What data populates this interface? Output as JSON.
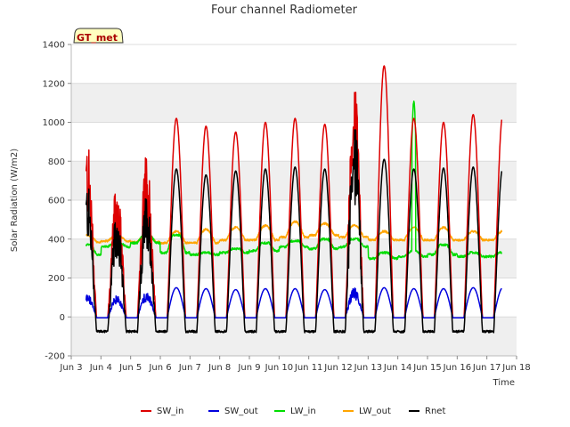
{
  "chart_data": {
    "type": "line",
    "title": "Four channel Radiometer",
    "xlabel": "Time",
    "ylabel": "Solar Radiation (W/m2)",
    "badge": "GT_met",
    "xlim": [
      3,
      18
    ],
    "ylim": [
      -200,
      1400
    ],
    "x_ticks": [
      3,
      4,
      5,
      6,
      7,
      8,
      9,
      10,
      11,
      12,
      13,
      14,
      15,
      16,
      17,
      18
    ],
    "x_tick_labels": [
      "Jun 3",
      "Jun 4",
      "Jun 5",
      "Jun 6",
      "Jun 7",
      "Jun 8",
      "Jun 9",
      "Jun 10",
      "Jun 11",
      "Jun 12",
      "Jun 13",
      "Jun 14",
      "Jun 15",
      "Jun 16",
      "Jun 17",
      "Jun 18"
    ],
    "y_ticks": [
      -200,
      0,
      200,
      400,
      600,
      800,
      1000,
      1200,
      1400
    ],
    "y_tick_labels": [
      "-200",
      "0",
      "200",
      "400",
      "600",
      "800",
      "1000",
      "1200",
      "1400"
    ],
    "grid": true,
    "legend_position": "bottom",
    "day_range": [
      3.5,
      17.5
    ],
    "series": [
      {
        "name": "SW_in",
        "color": "#dd0000",
        "daily_peak": [
          910,
          700,
          860,
          1020,
          980,
          950,
          1000,
          1020,
          990,
          1200,
          1290,
          1020,
          1000,
          1040
        ],
        "night_value": -5
      },
      {
        "name": "SW_out",
        "color": "#0000dd",
        "daily_peak": [
          120,
          110,
          130,
          150,
          145,
          140,
          145,
          145,
          140,
          150,
          150,
          145,
          145,
          150
        ],
        "night_value": -5
      },
      {
        "name": "LW_in",
        "color": "#00dd00",
        "daily_base": [
          320,
          360,
          380,
          330,
          320,
          330,
          340,
          360,
          350,
          360,
          300,
          310,
          320,
          310
        ],
        "daily_peak": [
          370,
          380,
          420,
          420,
          330,
          350,
          380,
          390,
          400,
          400,
          330,
          1110,
          370,
          330
        ]
      },
      {
        "name": "LW_out",
        "color": "#ffa500",
        "daily_base": [
          385,
          390,
          385,
          380,
          380,
          395,
          395,
          410,
          420,
          410,
          395,
          395,
          395,
          395
        ],
        "daily_peak": [
          420,
          415,
          420,
          440,
          450,
          460,
          470,
          490,
          480,
          470,
          440,
          460,
          460,
          440
        ]
      },
      {
        "name": "Rnet",
        "color": "#000000",
        "daily_peak": [
          700,
          540,
          640,
          760,
          730,
          750,
          760,
          770,
          760,
          1000,
          810,
          760,
          765,
          770
        ],
        "night_value": -75
      }
    ]
  }
}
